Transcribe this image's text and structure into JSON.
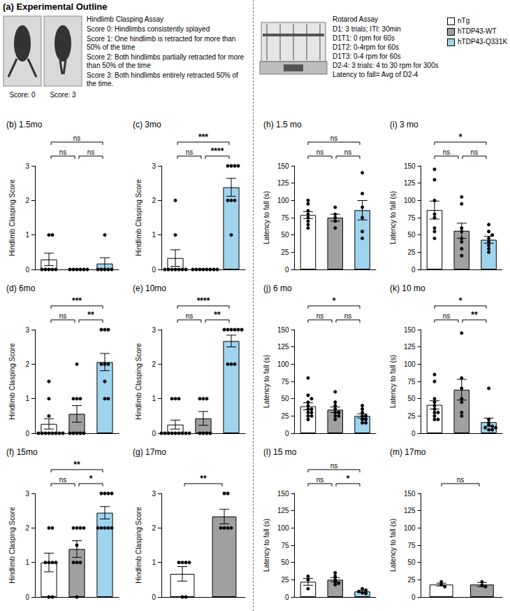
{
  "outline": {
    "title": "(a) Experimental Outline",
    "photo_captions": [
      "Score: 0",
      "Score: 3"
    ],
    "clasping_assay": {
      "heading": "Hindlimb Clasping Assay",
      "lines": [
        "Score 0: Hindlimbs consistently splayed",
        "Score 1: One hindlimb is retracted for more than 50% of the time",
        "Score 2: Both hindlimbs partially retracted for more than 50% of the time",
        "Score 3: Both hindlimbs entirely retracted 50% of the time."
      ]
    },
    "rotarod_assay": {
      "heading": "Rotarod Assay",
      "lines": [
        "D1: 3 trials; ITI: 30min",
        "D1T1: 0 rpm for 60s",
        "D1T2: 0-4rpm for 60s",
        "D1T3: 0-4 rpm for 60s",
        "D2-4: 3 trials: 4 to 30 rpm for 300s",
        "Latency to fall= Avg of D2-4"
      ]
    }
  },
  "groups": [
    {
      "name": "nTg",
      "color": "#ffffff"
    },
    {
      "name": "hTDP43-WT",
      "color": "#a0a0a0"
    },
    {
      "name": "hTDP43-Q331K",
      "color": "#9fd4ee"
    }
  ],
  "chart_data": [
    {
      "type": "bar",
      "title": "(b) 1.5mo",
      "y_label": "Hindlimb Clasping Score",
      "categories": [
        "nTg",
        "hTDP43-WT",
        "hTDP43-Q331K"
      ],
      "colors": [
        "#ffffff",
        "#a0a0a0",
        "#9fd4ee"
      ],
      "values": [
        0.29,
        0,
        0.17
      ],
      "errors": [
        0.18,
        0,
        0.17
      ],
      "points": [
        [
          0,
          0,
          0,
          0,
          0,
          1,
          1
        ],
        [
          0,
          0,
          0,
          0,
          0,
          0
        ],
        [
          0,
          0,
          0,
          0,
          0,
          1
        ]
      ],
      "comparisons": [
        {
          "groups": [
            0,
            1
          ],
          "label": "ns"
        },
        {
          "groups": [
            1,
            2
          ],
          "label": "ns"
        },
        {
          "groups": [
            0,
            2
          ],
          "label": "ns"
        }
      ],
      "ylim": [
        0,
        3
      ],
      "yticks": [
        0,
        1,
        2,
        3
      ],
      "grid": false,
      "tick_labels": "y"
    },
    {
      "type": "bar",
      "title": "(c) 3mo",
      "y_label": "Hindlimb Clasping Score",
      "categories": [
        "nTg",
        "hTDP43-WT",
        "hTDP43-Q331K"
      ],
      "colors": [
        "#ffffff",
        "#a0a0a0",
        "#9fd4ee"
      ],
      "values": [
        0.33,
        0,
        2.38
      ],
      "errors": [
        0.24,
        0,
        0.26
      ],
      "points": [
        [
          0,
          0,
          0,
          0,
          0,
          0,
          0,
          1,
          2
        ],
        [
          0,
          0,
          0,
          0,
          0,
          0,
          0,
          0
        ],
        [
          3,
          3,
          3,
          3,
          2,
          2,
          2,
          1
        ]
      ],
      "comparisons": [
        {
          "groups": [
            0,
            1
          ],
          "label": "ns"
        },
        {
          "groups": [
            1,
            2
          ],
          "label": "****"
        },
        {
          "groups": [
            0,
            2
          ],
          "label": "***"
        }
      ],
      "ylim": [
        0,
        3
      ],
      "yticks": [
        0,
        1,
        2,
        3
      ],
      "grid": false,
      "tick_labels": "y"
    },
    {
      "type": "bar",
      "title": "(d) 6mo",
      "y_label": "Hindlimb Clasping Score",
      "categories": [
        "nTg",
        "hTDP43-WT",
        "hTDP43-Q331K"
      ],
      "colors": [
        "#ffffff",
        "#a0a0a0",
        "#9fd4ee"
      ],
      "values": [
        0.27,
        0.56,
        2.06
      ],
      "errors": [
        0.15,
        0.24,
        0.25
      ],
      "points": [
        [
          0,
          0,
          0,
          0,
          0,
          0,
          0,
          0,
          0.5,
          1,
          1.5
        ],
        [
          0,
          0,
          0,
          0,
          0,
          1,
          1,
          1,
          2
        ],
        [
          3,
          3,
          3,
          2,
          2,
          2,
          1.5,
          1,
          1
        ]
      ],
      "comparisons": [
        {
          "groups": [
            0,
            1
          ],
          "label": "ns"
        },
        {
          "groups": [
            1,
            2
          ],
          "label": "**"
        },
        {
          "groups": [
            0,
            2
          ],
          "label": "***"
        }
      ],
      "ylim": [
        0,
        3
      ],
      "yticks": [
        0,
        1,
        2,
        3
      ],
      "grid": false,
      "tick_labels": "y"
    },
    {
      "type": "bar",
      "title": "(e) 10mo",
      "y_label": "Hindlimb Clasping Score",
      "categories": [
        "nTg",
        "hTDP43-WT",
        "hTDP43-Q331K"
      ],
      "colors": [
        "#ffffff",
        "#a0a0a0",
        "#9fd4ee"
      ],
      "values": [
        0.25,
        0.43,
        2.67
      ],
      "errors": [
        0.13,
        0.2,
        0.17
      ],
      "points": [
        [
          0,
          0,
          0,
          0,
          0,
          0,
          0,
          0,
          0,
          1,
          1,
          1
        ],
        [
          0,
          0,
          0,
          0,
          1,
          1,
          1
        ],
        [
          3,
          3,
          3,
          3,
          3,
          3,
          2,
          2,
          2
        ]
      ],
      "comparisons": [
        {
          "groups": [
            0,
            1
          ],
          "label": "ns"
        },
        {
          "groups": [
            1,
            2
          ],
          "label": "**"
        },
        {
          "groups": [
            0,
            2
          ],
          "label": "****"
        }
      ],
      "ylim": [
        0,
        3
      ],
      "yticks": [
        0,
        1,
        2,
        3
      ],
      "grid": false,
      "tick_labels": "y"
    },
    {
      "type": "bar",
      "title": "(f) 15mo",
      "y_label": "Hindlimb Clasping Score",
      "categories": [
        "nTg",
        "hTDP43-WT",
        "hTDP43-Q331K"
      ],
      "colors": [
        "#ffffff",
        "#a0a0a0",
        "#9fd4ee"
      ],
      "values": [
        1.0,
        1.39,
        2.44
      ],
      "errors": [
        0.27,
        0.24,
        0.18
      ],
      "points": [
        [
          0,
          0,
          1,
          1,
          1,
          1,
          2,
          2
        ],
        [
          0,
          1,
          1,
          1,
          1.5,
          2,
          2,
          2,
          2
        ],
        [
          3,
          3,
          3,
          3,
          2,
          2,
          2,
          2,
          2
        ]
      ],
      "comparisons": [
        {
          "groups": [
            0,
            1
          ],
          "label": "ns"
        },
        {
          "groups": [
            1,
            2
          ],
          "label": "*"
        },
        {
          "groups": [
            0,
            2
          ],
          "label": "**"
        }
      ],
      "ylim": [
        0,
        3
      ],
      "yticks": [
        0,
        1,
        2,
        3
      ],
      "grid": false,
      "tick_labels": "y"
    },
    {
      "type": "bar",
      "title": "(g) 17mo",
      "y_label": "Hindlimb Clasping Score",
      "categories": [
        "nTg",
        "hTDP43-WT"
      ],
      "colors": [
        "#ffffff",
        "#a0a0a0"
      ],
      "values": [
        0.67,
        2.33
      ],
      "errors": [
        0.21,
        0.21
      ],
      "points": [
        [
          0,
          0,
          1,
          1,
          1,
          1
        ],
        [
          3,
          3,
          2,
          2,
          2,
          2
        ]
      ],
      "comparisons": [
        {
          "groups": [
            0,
            1
          ],
          "label": "**"
        }
      ],
      "ylim": [
        0,
        3
      ],
      "yticks": [
        0,
        1,
        2,
        3
      ],
      "grid": false,
      "tick_labels": "y"
    },
    {
      "type": "bar",
      "title": "(h) 1.5 mo",
      "y_label": "Latency to fall (s)",
      "categories": [
        "nTg",
        "hTDP43-WT",
        "hTDP43-Q331K"
      ],
      "colors": [
        "#ffffff",
        "#a0a0a0",
        "#9fd4ee"
      ],
      "values": [
        78.75,
        75,
        85.8
      ],
      "errors": [
        5,
        5,
        14
      ],
      "points": [
        [
          100,
          95,
          85,
          80,
          75,
          70,
          65,
          60
        ],
        [
          90,
          80,
          75,
          70,
          60
        ],
        [
          140,
          110,
          90,
          75,
          55,
          45
        ]
      ],
      "comparisons": [
        {
          "groups": [
            0,
            1
          ],
          "label": "ns"
        },
        {
          "groups": [
            1,
            2
          ],
          "label": "ns"
        },
        {
          "groups": [
            0,
            2
          ],
          "label": "ns"
        }
      ],
      "ylim": [
        0,
        150
      ],
      "yticks": [
        0,
        25,
        50,
        75,
        100,
        125,
        150
      ],
      "grid": false,
      "tick_labels": "y"
    },
    {
      "type": "bar",
      "title": "(i) 3 mo",
      "y_label": "Latency to fall (s)",
      "categories": [
        "nTg",
        "hTDP43-WT",
        "hTDP43-Q331K"
      ],
      "colors": [
        "#ffffff",
        "#a0a0a0",
        "#9fd4ee"
      ],
      "values": [
        86,
        56,
        43
      ],
      "errors": [
        13,
        11,
        5
      ],
      "points": [
        [
          145,
          130,
          100,
          80,
          75,
          60,
          55,
          45
        ],
        [
          105,
          95,
          60,
          55,
          45,
          40,
          30,
          20
        ],
        [
          65,
          55,
          50,
          45,
          40,
          35,
          30,
          25
        ]
      ],
      "comparisons": [
        {
          "groups": [
            0,
            1
          ],
          "label": "ns"
        },
        {
          "groups": [
            1,
            2
          ],
          "label": "ns"
        },
        {
          "groups": [
            0,
            2
          ],
          "label": "*"
        }
      ],
      "ylim": [
        0,
        150
      ],
      "yticks": [
        0,
        25,
        50,
        75,
        100,
        125,
        150
      ],
      "grid": false,
      "tick_labels": "y"
    },
    {
      "type": "bar",
      "title": "(j) 6 mo",
      "y_label": "Latency to fall (s)",
      "categories": [
        "nTg",
        "hTDP43-WT",
        "hTDP43-Q331K"
      ],
      "colors": [
        "#ffffff",
        "#a0a0a0",
        "#9fd4ee"
      ],
      "values": [
        39,
        34,
        25
      ],
      "errors": [
        5,
        4,
        3
      ],
      "points": [
        [
          80,
          55,
          50,
          45,
          40,
          35,
          30,
          30,
          25,
          20,
          25,
          35
        ],
        [
          60,
          45,
          40,
          35,
          30,
          30,
          25,
          25,
          20
        ],
        [
          40,
          35,
          30,
          25,
          25,
          20,
          20,
          15,
          15
        ]
      ],
      "comparisons": [
        {
          "groups": [
            0,
            1
          ],
          "label": "ns"
        },
        {
          "groups": [
            1,
            2
          ],
          "label": "ns"
        },
        {
          "groups": [
            0,
            2
          ],
          "label": "*"
        }
      ],
      "ylim": [
        0,
        150
      ],
      "yticks": [
        0,
        25,
        50,
        75,
        100,
        125,
        150
      ],
      "grid": false,
      "tick_labels": "y"
    },
    {
      "type": "bar",
      "title": "(k) 10 mo",
      "y_label": "Latency to fall (s)",
      "categories": [
        "nTg",
        "hTDP43-WT",
        "hTDP43-Q331K"
      ],
      "colors": [
        "#ffffff",
        "#a0a0a0",
        "#9fd4ee"
      ],
      "values": [
        41,
        63,
        16
      ],
      "errors": [
        6,
        15,
        6
      ],
      "points": [
        [
          85,
          75,
          50,
          45,
          40,
          35,
          30,
          30,
          25,
          20,
          20
        ],
        [
          145,
          80,
          65,
          50,
          45,
          30,
          25
        ],
        [
          65,
          20,
          15,
          12,
          10,
          8,
          8,
          5,
          5
        ]
      ],
      "comparisons": [
        {
          "groups": [
            0,
            1
          ],
          "label": "ns"
        },
        {
          "groups": [
            1,
            2
          ],
          "label": "**"
        },
        {
          "groups": [
            0,
            2
          ],
          "label": "*"
        }
      ],
      "ylim": [
        0,
        150
      ],
      "yticks": [
        0,
        25,
        50,
        75,
        100,
        125,
        150
      ],
      "grid": false,
      "tick_labels": "y"
    },
    {
      "type": "bar",
      "title": "(l) 15 mo",
      "y_label": "Latency to fall (s)",
      "categories": [
        "nTg",
        "hTDP43-WT",
        "hTDP43-Q331K"
      ],
      "colors": [
        "#ffffff",
        "#a0a0a0",
        "#9fd4ee"
      ],
      "values": [
        22,
        25,
        8
      ],
      "errors": [
        5,
        3,
        1.5
      ],
      "points": [
        [
          30,
          25,
          12
        ],
        [
          35,
          30,
          25,
          22,
          20,
          18
        ],
        [
          12,
          10,
          8,
          6,
          5
        ]
      ],
      "comparisons": [
        {
          "groups": [
            0,
            1
          ],
          "label": "ns"
        },
        {
          "groups": [
            1,
            2
          ],
          "label": "*"
        },
        {
          "groups": [
            0,
            2
          ],
          "label": "ns"
        }
      ],
      "ylim": [
        0,
        150
      ],
      "yticks": [
        0,
        25,
        50,
        75,
        100,
        125,
        150
      ],
      "grid": false,
      "tick_labels": "y"
    },
    {
      "type": "bar",
      "title": "(m) 17mo",
      "y_label": "Latency to fall (s)",
      "categories": [
        "nTg",
        "hTDP43-WT"
      ],
      "colors": [
        "#ffffff",
        "#a0a0a0"
      ],
      "values": [
        18,
        18
      ],
      "errors": [
        2,
        3
      ],
      "points": [
        [
          22,
          18,
          15
        ],
        [
          22,
          17,
          15
        ]
      ],
      "comparisons": [
        {
          "groups": [
            0,
            1
          ],
          "label": "ns"
        }
      ],
      "ylim": [
        0,
        150
      ],
      "yticks": [
        0,
        25,
        50,
        75,
        100,
        125,
        150
      ],
      "grid": false,
      "tick_labels": "y"
    }
  ]
}
